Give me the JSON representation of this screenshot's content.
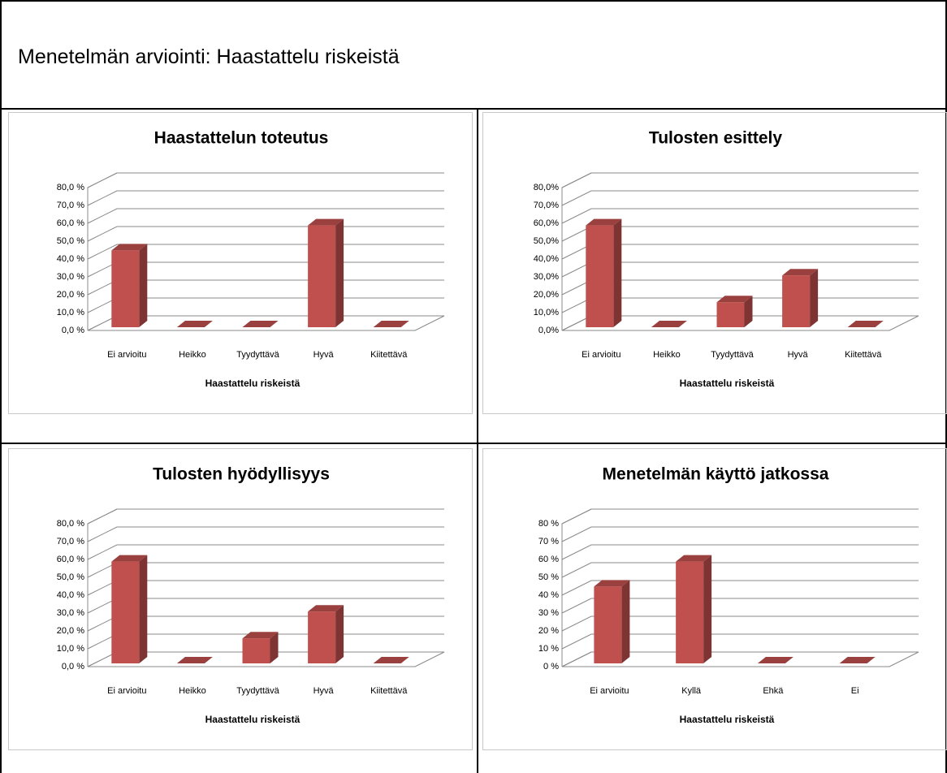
{
  "title": "Menetelmän arviointi: Haastattelu riskeistä",
  "chart_data": [
    {
      "type": "bar3d",
      "title": "Haastattelun toteutus",
      "xlabel": "Haastattelu riskeistä",
      "categories": [
        "Ei arvioitu",
        "Heikko",
        "Tyydyttävä",
        "Hyvä",
        "Kiitettävä"
      ],
      "values": [
        43,
        0,
        0,
        57,
        0
      ],
      "color": "#c0504d",
      "ylim": [
        0,
        80
      ],
      "grid": true,
      "yticks": [
        {
          "value": 0,
          "label": "0,0 %"
        },
        {
          "value": 10,
          "label": "10,0 %"
        },
        {
          "value": 20,
          "label": "20,0 %"
        },
        {
          "value": 30,
          "label": "30,0 %"
        },
        {
          "value": 40,
          "label": "40,0 %"
        },
        {
          "value": 50,
          "label": "50,0 %"
        },
        {
          "value": 60,
          "label": "60,0 %"
        },
        {
          "value": 70,
          "label": "70,0 %"
        },
        {
          "value": 80,
          "label": "80,0 %"
        }
      ]
    },
    {
      "type": "bar3d",
      "title": "Tulosten esittely",
      "xlabel": "Haastattelu riskeistä",
      "categories": [
        "Ei arvioitu",
        "Heikko",
        "Tyydyttävä",
        "Hyvä",
        "Kiitettävä"
      ],
      "values": [
        57,
        0,
        14,
        29,
        0
      ],
      "color": "#c0504d",
      "ylim": [
        0,
        80
      ],
      "grid": true,
      "yticks": [
        {
          "value": 0,
          "label": "0,0%"
        },
        {
          "value": 10,
          "label": "10,0%"
        },
        {
          "value": 20,
          "label": "20,0%"
        },
        {
          "value": 30,
          "label": "30,0%"
        },
        {
          "value": 40,
          "label": "40,0%"
        },
        {
          "value": 50,
          "label": "50,0%"
        },
        {
          "value": 60,
          "label": "60,0%"
        },
        {
          "value": 70,
          "label": "70,0%"
        },
        {
          "value": 80,
          "label": "80,0%"
        }
      ]
    },
    {
      "type": "bar3d",
      "title": "Tulosten hyödyllisyys",
      "xlabel": "Haastattelu riskeistä",
      "categories": [
        "Ei arvioitu",
        "Heikko",
        "Tyydyttävä",
        "Hyvä",
        "Kiitettävä"
      ],
      "values": [
        57,
        0,
        14,
        29,
        0
      ],
      "color": "#c0504d",
      "ylim": [
        0,
        80
      ],
      "grid": true,
      "yticks": [
        {
          "value": 0,
          "label": "0,0 %"
        },
        {
          "value": 10,
          "label": "10,0 %"
        },
        {
          "value": 20,
          "label": "20,0 %"
        },
        {
          "value": 30,
          "label": "30,0 %"
        },
        {
          "value": 40,
          "label": "40,0 %"
        },
        {
          "value": 50,
          "label": "50,0 %"
        },
        {
          "value": 60,
          "label": "60,0 %"
        },
        {
          "value": 70,
          "label": "70,0 %"
        },
        {
          "value": 80,
          "label": "80,0 %"
        }
      ]
    },
    {
      "type": "bar3d",
      "title": "Menetelmän käyttö jatkossa",
      "xlabel": "Haastattelu riskeistä",
      "categories": [
        "Ei arvioitu",
        "Kyllä",
        "Ehkä",
        "Ei"
      ],
      "values": [
        43,
        57,
        0,
        0
      ],
      "color": "#c0504d",
      "ylim": [
        0,
        80
      ],
      "grid": true,
      "yticks": [
        {
          "value": 0,
          "label": "0 %"
        },
        {
          "value": 10,
          "label": "10 %"
        },
        {
          "value": 20,
          "label": "20 %"
        },
        {
          "value": 30,
          "label": "30 %"
        },
        {
          "value": 40,
          "label": "40 %"
        },
        {
          "value": 50,
          "label": "50 %"
        },
        {
          "value": 60,
          "label": "60 %"
        },
        {
          "value": 70,
          "label": "70 %"
        },
        {
          "value": 80,
          "label": "80 %"
        }
      ]
    }
  ]
}
